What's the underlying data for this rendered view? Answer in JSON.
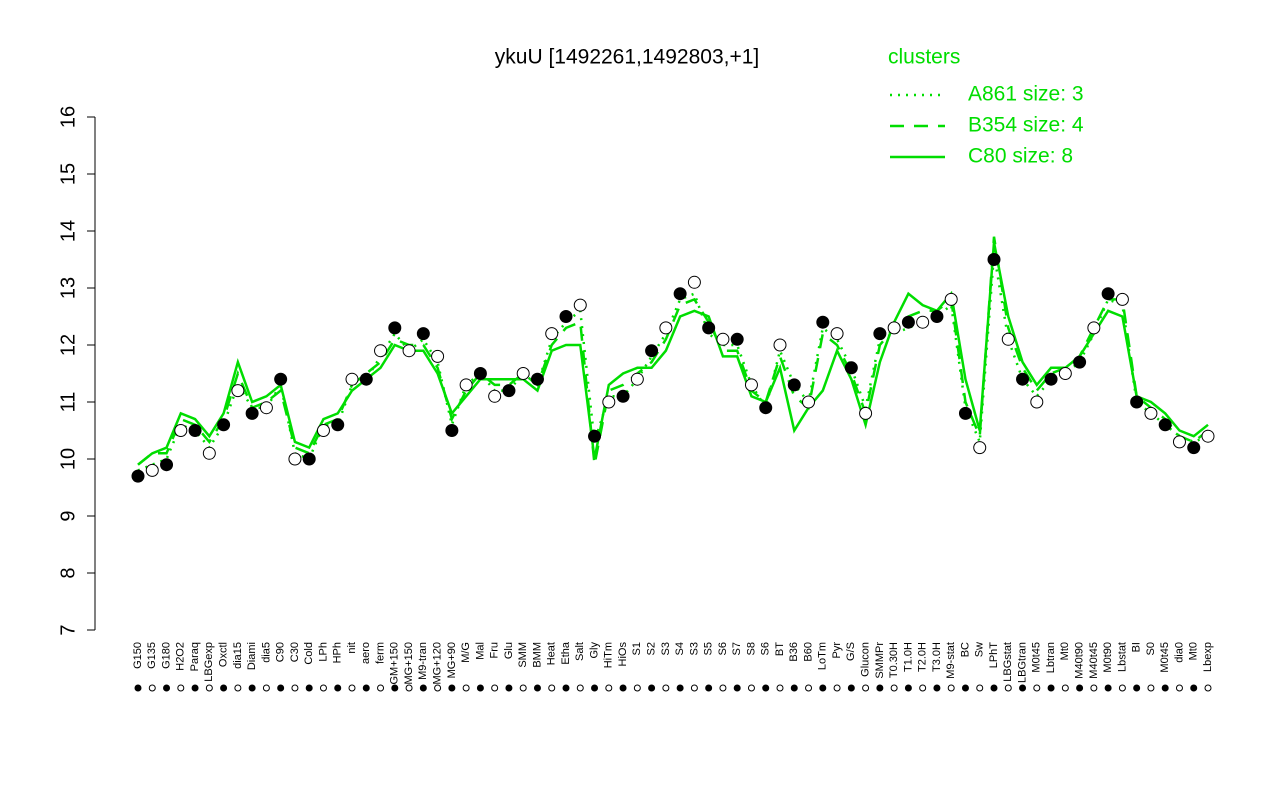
{
  "chart_data": {
    "type": "line",
    "title": "ykuU [1492261,1492803,+1]",
    "legend_title": "clusters",
    "legend_position": "top-right",
    "color": "#00dd00",
    "ylim": [
      7,
      16
    ],
    "yticks": [
      7,
      8,
      9,
      10,
      11,
      12,
      13,
      14,
      15,
      16
    ],
    "categories": [
      "G150",
      "G135",
      "G180",
      "H2O2",
      "Paraq",
      "LBGexp",
      "Oxctl",
      "dia15",
      "Diami",
      "dia5",
      "C90",
      "C30",
      "Cold",
      "LPh",
      "HPh",
      "nit",
      "aero",
      "ferm",
      "GM+150",
      "MG+150",
      "M9-tran",
      "MG+120",
      "MG+90",
      "M/G",
      "Mal",
      "Fru",
      "Glu",
      "SMM",
      "BMM",
      "Heat",
      "Etha",
      "Salt",
      "Gly",
      "HiTm",
      "HiOs",
      "S1",
      "S2",
      "S3",
      "S4",
      "S3",
      "S5",
      "S6",
      "S7",
      "S8",
      "S6",
      "BT",
      "B36",
      "B60",
      "LoTm",
      "Pyr",
      "G/S",
      "Glucon",
      "SMMPr",
      "T0.30H",
      "T1.0H",
      "T2.0H",
      "T3.0H",
      "M9-stat",
      "BC",
      "Sw",
      "LPhT",
      "LBGstat",
      "LBGtran",
      "M0t45",
      "Lbtran",
      "Mt0",
      "M40t90",
      "M40t45",
      "M0t90",
      "Lbstat",
      "BI",
      "S0",
      "M0t45",
      "dia0",
      "Mt0",
      "Lbexp"
    ],
    "values": [
      9.7,
      9.8,
      9.9,
      10.5,
      10.5,
      10.1,
      10.6,
      11.2,
      10.8,
      10.9,
      11.4,
      10.0,
      10.0,
      10.5,
      10.6,
      11.4,
      11.4,
      11.9,
      12.3,
      11.9,
      12.2,
      11.8,
      10.5,
      11.3,
      11.5,
      11.1,
      11.2,
      11.5,
      11.4,
      12.2,
      12.5,
      12.7,
      10.4,
      11.0,
      11.1,
      11.4,
      11.9,
      12.3,
      12.9,
      13.1,
      12.3,
      12.1,
      12.1,
      11.3,
      10.9,
      12.0,
      11.3,
      11.0,
      12.4,
      12.2,
      11.6,
      10.8,
      12.2,
      12.3,
      12.4,
      12.4,
      12.5,
      12.8,
      10.8,
      10.2,
      13.5,
      12.1,
      11.4,
      11.0,
      11.4,
      11.5,
      11.7,
      12.3,
      12.9,
      12.8,
      11.0,
      10.8,
      10.6,
      10.3,
      10.2,
      10.4
    ],
    "series": [
      {
        "name": "A861 size: 3",
        "dash": "dotted",
        "values": [
          9.8,
          9.9,
          10.0,
          10.6,
          10.5,
          10.2,
          10.6,
          11.3,
          10.9,
          10.9,
          11.3,
          10.1,
          10.0,
          10.6,
          10.6,
          11.3,
          11.4,
          11.8,
          12.2,
          11.9,
          12.1,
          11.7,
          10.6,
          11.3,
          11.5,
          11.2,
          11.2,
          11.5,
          11.3,
          12.1,
          12.4,
          12.6,
          10.3,
          11.1,
          11.1,
          11.4,
          11.8,
          12.2,
          12.8,
          12.9,
          12.2,
          12.0,
          12.0,
          11.3,
          10.9,
          11.9,
          11.3,
          11.0,
          12.3,
          12.1,
          11.6,
          10.9,
          12.1,
          12.2,
          12.3,
          12.4,
          12.5,
          12.7,
          10.9,
          10.3,
          13.6,
          12.1,
          11.4,
          11.1,
          11.4,
          11.5,
          11.7,
          12.2,
          12.8,
          12.7,
          11.0,
          10.8,
          10.6,
          10.4,
          10.3,
          10.4
        ]
      },
      {
        "name": "B354 size: 4",
        "dash": "dashed",
        "values": [
          9.9,
          10.1,
          10.1,
          10.7,
          10.6,
          10.3,
          10.7,
          11.5,
          10.9,
          11.0,
          11.2,
          10.2,
          10.1,
          10.6,
          10.7,
          11.3,
          11.5,
          11.7,
          12.1,
          12.0,
          12.0,
          11.6,
          10.7,
          11.2,
          11.5,
          11.3,
          11.3,
          11.5,
          11.3,
          12.0,
          12.3,
          12.4,
          9.9,
          11.2,
          11.3,
          11.5,
          11.7,
          12.1,
          12.7,
          12.8,
          12.4,
          11.9,
          11.9,
          11.2,
          11.0,
          11.8,
          11.1,
          10.9,
          12.2,
          12.0,
          11.5,
          10.8,
          12.0,
          12.3,
          12.5,
          12.6,
          12.6,
          12.8,
          11.0,
          10.4,
          13.9,
          12.3,
          11.6,
          11.2,
          11.5,
          11.6,
          11.8,
          12.3,
          12.8,
          12.8,
          11.1,
          10.9,
          10.7,
          10.4,
          10.3,
          10.5
        ]
      },
      {
        "name": "C80 size: 8",
        "dash": "solid",
        "values": [
          9.9,
          10.1,
          10.2,
          10.8,
          10.7,
          10.4,
          10.8,
          11.7,
          11.0,
          11.1,
          11.3,
          10.3,
          10.2,
          10.7,
          10.8,
          11.2,
          11.4,
          11.6,
          12.0,
          11.9,
          11.9,
          11.5,
          10.8,
          11.1,
          11.4,
          11.4,
          11.4,
          11.4,
          11.2,
          11.9,
          12.0,
          12.0,
          10.0,
          11.3,
          11.5,
          11.6,
          11.6,
          11.9,
          12.5,
          12.6,
          12.5,
          11.8,
          11.8,
          11.1,
          11.0,
          11.6,
          10.5,
          10.9,
          11.2,
          11.9,
          11.4,
          10.6,
          11.7,
          12.4,
          12.9,
          12.7,
          12.6,
          12.9,
          11.4,
          10.5,
          13.8,
          12.5,
          11.7,
          11.3,
          11.6,
          11.6,
          11.8,
          12.2,
          12.6,
          12.5,
          11.1,
          11.0,
          10.8,
          10.5,
          10.4,
          10.6
        ]
      }
    ]
  }
}
